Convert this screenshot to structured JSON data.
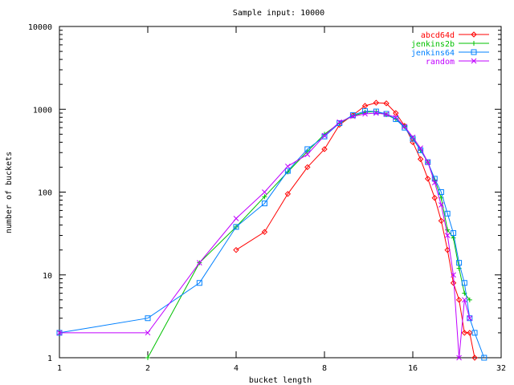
{
  "chart_data": {
    "type": "line",
    "title": "Sample input: 10000",
    "xlabel": "bucket length",
    "ylabel": "number of buckets",
    "x_scale": "log2",
    "y_scale": "log10",
    "xlim": [
      1,
      32
    ],
    "ylim": [
      1,
      10000
    ],
    "x_ticks": [
      1,
      2,
      4,
      8,
      16,
      32
    ],
    "x_tick_labels": [
      "1",
      "2",
      "4",
      "8",
      "16",
      "32"
    ],
    "y_ticks": [
      1,
      10,
      100,
      1000,
      10000
    ],
    "y_tick_labels": [
      "1",
      "10",
      "100",
      "1000",
      "10000"
    ],
    "grid": false,
    "legend_position": "top-right",
    "series": [
      {
        "name": "abcd64d",
        "color": "#ff0000",
        "marker": "diamond",
        "points": [
          [
            4,
            20
          ],
          [
            5,
            33
          ],
          [
            6,
            95
          ],
          [
            7,
            200
          ],
          [
            8,
            330
          ],
          [
            9,
            650
          ],
          [
            10,
            850
          ],
          [
            11,
            1100
          ],
          [
            12,
            1200
          ],
          [
            13,
            1180
          ],
          [
            14,
            900
          ],
          [
            15,
            630
          ],
          [
            16,
            400
          ],
          [
            17,
            250
          ],
          [
            18,
            145
          ],
          [
            19,
            85
          ],
          [
            20,
            45
          ],
          [
            21,
            20
          ],
          [
            22,
            8
          ],
          [
            23,
            5
          ],
          [
            24,
            2
          ],
          [
            25,
            2
          ],
          [
            26,
            1
          ]
        ]
      },
      {
        "name": "jenkins2b",
        "color": "#00c000",
        "marker": "plus",
        "points": [
          [
            2,
            1
          ],
          [
            3,
            14
          ],
          [
            4,
            38
          ],
          [
            5,
            88
          ],
          [
            6,
            175
          ],
          [
            7,
            310
          ],
          [
            8,
            500
          ],
          [
            9,
            680
          ],
          [
            10,
            830
          ],
          [
            11,
            920
          ],
          [
            12,
            940
          ],
          [
            13,
            860
          ],
          [
            14,
            760
          ],
          [
            15,
            620
          ],
          [
            16,
            450
          ],
          [
            17,
            320
          ],
          [
            18,
            230
          ],
          [
            19,
            140
          ],
          [
            20,
            85
          ],
          [
            21,
            35
          ],
          [
            22,
            28
          ],
          [
            23,
            12
          ],
          [
            24,
            6
          ],
          [
            25,
            5
          ]
        ]
      },
      {
        "name": "jenkins64",
        "color": "#0080ff",
        "marker": "square",
        "points": [
          [
            1,
            2
          ],
          [
            2,
            3
          ],
          [
            3,
            8
          ],
          [
            4,
            38
          ],
          [
            5,
            73
          ],
          [
            6,
            180
          ],
          [
            7,
            330
          ],
          [
            8,
            470
          ],
          [
            9,
            680
          ],
          [
            10,
            850
          ],
          [
            11,
            950
          ],
          [
            12,
            940
          ],
          [
            13,
            880
          ],
          [
            14,
            760
          ],
          [
            15,
            600
          ],
          [
            16,
            440
          ],
          [
            17,
            320
          ],
          [
            18,
            230
          ],
          [
            19,
            145
          ],
          [
            20,
            100
          ],
          [
            21,
            55
          ],
          [
            22,
            32
          ],
          [
            23,
            14
          ],
          [
            24,
            8
          ],
          [
            25,
            3
          ],
          [
            26,
            2
          ],
          [
            28,
            1
          ]
        ]
      },
      {
        "name": "random",
        "color": "#c000ff",
        "marker": "cross",
        "points": [
          [
            1,
            2
          ],
          [
            2,
            2
          ],
          [
            3,
            14
          ],
          [
            4,
            48
          ],
          [
            5,
            100
          ],
          [
            6,
            205
          ],
          [
            7,
            285
          ],
          [
            8,
            480
          ],
          [
            9,
            700
          ],
          [
            10,
            820
          ],
          [
            11,
            880
          ],
          [
            12,
            900
          ],
          [
            13,
            870
          ],
          [
            14,
            800
          ],
          [
            15,
            620
          ],
          [
            16,
            460
          ],
          [
            17,
            340
          ],
          [
            18,
            230
          ],
          [
            19,
            130
          ],
          [
            20,
            70
          ],
          [
            21,
            30
          ],
          [
            22,
            10
          ],
          [
            23,
            1
          ],
          [
            24,
            5
          ],
          [
            25,
            3
          ]
        ]
      }
    ]
  }
}
